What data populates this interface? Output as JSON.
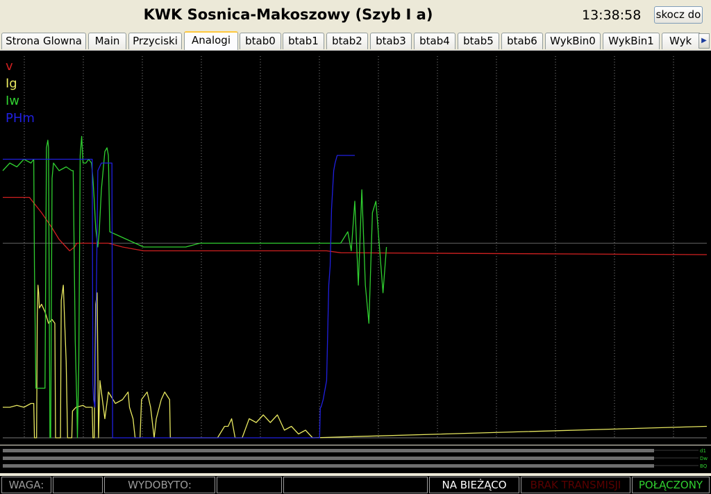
{
  "header": {
    "title": "KWK Sosnica-Makoszowy (Szyb I a)",
    "time": "13:38:58",
    "jump_button": "skocz do"
  },
  "tabs": [
    {
      "label": "Strona Glowna"
    },
    {
      "label": "Main"
    },
    {
      "label": "Przyciski"
    },
    {
      "label": "Analogi",
      "active": true
    },
    {
      "label": "btab0"
    },
    {
      "label": "btab1"
    },
    {
      "label": "btab2"
    },
    {
      "label": "btab3"
    },
    {
      "label": "btab4"
    },
    {
      "label": "btab5"
    },
    {
      "label": "btab6"
    },
    {
      "label": "WykBin0"
    },
    {
      "label": "WykBin1"
    },
    {
      "label": "Wyk"
    }
  ],
  "legend": [
    {
      "label": "v",
      "color": "#d02020"
    },
    {
      "label": "Ig",
      "color": "#e8e860"
    },
    {
      "label": "Iw",
      "color": "#30d030"
    },
    {
      "label": "PHm",
      "color": "#2020e0"
    }
  ],
  "strip_labels": [
    "d1",
    "Dw",
    "BQ"
  ],
  "status": {
    "waga_label": "WAGA:",
    "wydobyto_label": "WYDOBYTO:",
    "live": "NA BIEŻĄCO",
    "no_transmission": "BRAK TRANSMISJI",
    "connected": "POŁĄCZONY"
  },
  "colors": {
    "v": "#d02020",
    "Ig": "#e8e860",
    "Iw": "#30d030",
    "PHm": "#2020e0",
    "grid": "#606060",
    "live": "#ffffff",
    "no_transmission": "#5a0000",
    "connected": "#30d030"
  },
  "chart_data": {
    "type": "line",
    "x_range": [
      0,
      1000
    ],
    "y_range": [
      0,
      100
    ],
    "series": [
      {
        "name": "v",
        "points": [
          [
            0,
            63
          ],
          [
            38,
            63
          ],
          [
            40,
            62.5
          ],
          [
            55,
            59
          ],
          [
            70,
            55
          ],
          [
            80,
            52
          ],
          [
            95,
            49
          ],
          [
            102,
            50
          ],
          [
            105,
            51
          ],
          [
            150,
            51
          ],
          [
            170,
            50
          ],
          [
            200,
            49
          ],
          [
            240,
            49
          ],
          [
            280,
            49
          ],
          [
            300,
            49
          ],
          [
            350,
            49
          ],
          [
            420,
            49
          ],
          [
            460,
            49
          ],
          [
            480,
            48.5
          ],
          [
            1000,
            48
          ]
        ]
      },
      {
        "name": "Ig",
        "points": [
          [
            0,
            8
          ],
          [
            10,
            8
          ],
          [
            20,
            8.5
          ],
          [
            30,
            8
          ],
          [
            40,
            9
          ],
          [
            44,
            9
          ],
          [
            45,
            0
          ],
          [
            48,
            0
          ],
          [
            49,
            32
          ],
          [
            50,
            40
          ],
          [
            51,
            38
          ],
          [
            52,
            34
          ],
          [
            55,
            35
          ],
          [
            60,
            33
          ],
          [
            65,
            30
          ],
          [
            70,
            31
          ],
          [
            74,
            30
          ],
          [
            75,
            0
          ],
          [
            82,
            0
          ],
          [
            83,
            36
          ],
          [
            86,
            40
          ],
          [
            88,
            30
          ],
          [
            90,
            20
          ],
          [
            92,
            0
          ],
          [
            98,
            0
          ],
          [
            99,
            7
          ],
          [
            104,
            8
          ],
          [
            114,
            8.5
          ],
          [
            118,
            8
          ],
          [
            127,
            8
          ],
          [
            128,
            0
          ],
          [
            130,
            0
          ],
          [
            132,
            35
          ],
          [
            134,
            38
          ],
          [
            135,
            20
          ],
          [
            136,
            0
          ],
          [
            138,
            15
          ],
          [
            145,
            5
          ],
          [
            150,
            12
          ],
          [
            160,
            9
          ],
          [
            170,
            10
          ],
          [
            178,
            12
          ],
          [
            180,
            8
          ],
          [
            185,
            5
          ],
          [
            188,
            0
          ],
          [
            195,
            0
          ],
          [
            197,
            10
          ],
          [
            205,
            12
          ],
          [
            210,
            8
          ],
          [
            215,
            0
          ],
          [
            218,
            5
          ],
          [
            225,
            10
          ],
          [
            230,
            12
          ],
          [
            237,
            10
          ],
          [
            238,
            0
          ],
          [
            250,
            0
          ],
          [
            300,
            0
          ],
          [
            305,
            0
          ],
          [
            315,
            3
          ],
          [
            320,
            3
          ],
          [
            325,
            5
          ],
          [
            330,
            0
          ],
          [
            340,
            0
          ],
          [
            350,
            5
          ],
          [
            360,
            4
          ],
          [
            370,
            6
          ],
          [
            380,
            4
          ],
          [
            390,
            6
          ],
          [
            400,
            2
          ],
          [
            410,
            3
          ],
          [
            420,
            1
          ],
          [
            430,
            2
          ],
          [
            440,
            0
          ],
          [
            1000,
            3
          ]
        ]
      },
      {
        "name": "Iw",
        "points": [
          [
            0,
            70
          ],
          [
            10,
            72
          ],
          [
            20,
            71
          ],
          [
            30,
            73
          ],
          [
            40,
            72
          ],
          [
            44,
            73
          ],
          [
            45,
            45
          ],
          [
            47,
            13
          ],
          [
            50,
            13
          ],
          [
            55,
            13
          ],
          [
            60,
            13
          ],
          [
            62,
            76
          ],
          [
            64,
            78
          ],
          [
            65,
            76
          ],
          [
            67,
            0
          ],
          [
            68,
            0
          ],
          [
            70,
            68
          ],
          [
            72,
            72
          ],
          [
            80,
            70
          ],
          [
            90,
            71
          ],
          [
            98,
            70
          ],
          [
            100,
            70
          ],
          [
            103,
            25
          ],
          [
            105,
            10
          ],
          [
            106,
            0
          ],
          [
            108,
            20
          ],
          [
            110,
            74
          ],
          [
            112,
            79
          ],
          [
            114,
            72
          ],
          [
            118,
            72
          ],
          [
            122,
            73
          ],
          [
            126,
            72
          ],
          [
            128,
            68
          ],
          [
            130,
            62
          ],
          [
            132,
            55
          ],
          [
            135,
            50
          ],
          [
            137,
            54
          ],
          [
            140,
            65
          ],
          [
            145,
            75
          ],
          [
            148,
            76
          ],
          [
            150,
            74
          ],
          [
            152,
            54
          ],
          [
            200,
            50
          ],
          [
            240,
            50
          ],
          [
            260,
            50
          ],
          [
            280,
            51
          ],
          [
            300,
            51
          ],
          [
            350,
            51
          ],
          [
            400,
            51
          ],
          [
            460,
            51
          ],
          [
            480,
            51
          ],
          [
            490,
            54
          ],
          [
            495,
            49
          ],
          [
            500,
            62
          ],
          [
            505,
            40
          ],
          [
            510,
            65
          ],
          [
            515,
            40
          ],
          [
            520,
            30
          ],
          [
            525,
            59
          ],
          [
            530,
            62
          ],
          [
            535,
            50
          ],
          [
            540,
            38
          ],
          [
            545,
            50
          ]
        ]
      },
      {
        "name": "PHm",
        "points": [
          [
            0,
            73
          ],
          [
            20,
            73
          ],
          [
            40,
            73
          ],
          [
            60,
            73
          ],
          [
            80,
            73
          ],
          [
            100,
            73
          ],
          [
            120,
            73
          ],
          [
            127,
            73
          ],
          [
            128,
            14
          ],
          [
            129,
            10
          ],
          [
            131,
            8
          ],
          [
            135,
            70
          ],
          [
            140,
            72
          ],
          [
            145,
            72
          ],
          [
            150,
            72
          ],
          [
            155,
            72
          ],
          [
            156,
            0
          ],
          [
            157,
            0
          ],
          [
            200,
            0
          ],
          [
            300,
            0
          ],
          [
            420,
            0
          ],
          [
            450,
            0
          ],
          [
            451,
            8
          ],
          [
            452,
            8
          ],
          [
            455,
            10
          ],
          [
            460,
            15
          ],
          [
            463,
            40
          ],
          [
            465,
            45
          ],
          [
            467,
            60
          ],
          [
            470,
            70
          ],
          [
            472,
            72
          ],
          [
            475,
            74
          ],
          [
            480,
            74
          ],
          [
            500,
            74
          ]
        ]
      }
    ]
  }
}
